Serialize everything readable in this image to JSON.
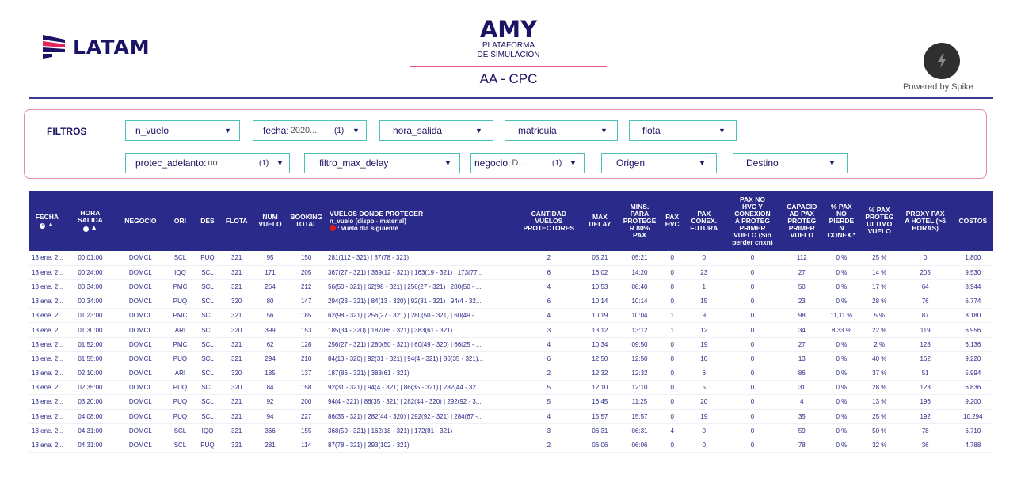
{
  "header": {
    "brand": "LATAM",
    "app_title": "AMY",
    "subtitle_line1": "PLATAFORMA",
    "subtitle_line2": "DE SIMULACIÓN",
    "scenario": "AA - CPC",
    "powered_by": "Powered by Spike"
  },
  "filters": {
    "label": "FILTROS",
    "row1": [
      {
        "name": "n_vuelo",
        "value": "",
        "count": ""
      },
      {
        "name": "fecha:",
        "value": "2020...",
        "count": "(1)"
      },
      {
        "name": "hora_salida",
        "value": "",
        "count": ""
      },
      {
        "name": "matricula",
        "value": "",
        "count": ""
      },
      {
        "name": "flota",
        "value": "",
        "count": ""
      }
    ],
    "row2": [
      {
        "name": "protec_adelanto:",
        "value": "no",
        "count": "(1)"
      },
      {
        "name": "filtro_max_delay",
        "value": "",
        "count": ""
      },
      {
        "name": "negocio:",
        "value": "D...",
        "count": "(1)"
      },
      {
        "name": "Origen",
        "value": "",
        "count": ""
      },
      {
        "name": "Destino",
        "value": "",
        "count": ""
      }
    ]
  },
  "table": {
    "headers": {
      "fecha": "FECHA",
      "hora_salida_1": "HORA",
      "hora_salida_2": "SALIDA",
      "negocio": "NEGOCIO",
      "ori": "ORI",
      "des": "DES",
      "flota": "FLOTA",
      "num_vuelo_1": "NUM",
      "num_vuelo_2": "VUELO",
      "booking_1": "BOOKING",
      "booking_2": "TOTAL",
      "vuelos_1": "VUELOS DONDE PROTEGER",
      "vuelos_2": "n_vuelo (dispo - material)",
      "vuelos_3": ": vuelo día siguiente",
      "cantidad_1": "CANTIDAD",
      "cantidad_2": "VUELOS",
      "cantidad_3": "PROTECTORES",
      "max_delay_1": "MAX",
      "max_delay_2": "DELAY",
      "mins_1": "MINS.",
      "mins_2": "PARA",
      "mins_3": "PROTEGE",
      "mins_4": "R 80%",
      "mins_5": "PAX",
      "pax_hvc_1": "PAX",
      "pax_hvc_2": "HVC",
      "pax_conex_1": "PAX",
      "pax_conex_2": "CONEX.",
      "pax_conex_3": "FUTURA",
      "pax_no_1": "PAX NO",
      "pax_no_2": "HVC Y",
      "pax_no_3": "CONEXION",
      "pax_no_4": "A PROTEG",
      "pax_no_5": "PRIMER",
      "pax_no_6": "VUELO (Sin",
      "pax_no_7": "perder cnxn)",
      "capac_1": "CAPACID",
      "capac_2": "AD PAX",
      "capac_3": "PROTEG",
      "capac_4": "PRIMER",
      "capac_5": "VUELO",
      "pct_no_1": "% PAX",
      "pct_no_2": "NO",
      "pct_no_3": "PIERDE",
      "pct_no_4": "N",
      "pct_no_5": "CONEX.*",
      "pct_ult_1": "% PAX",
      "pct_ult_2": "PROTEG",
      "pct_ult_3": "ULTIMO",
      "pct_ult_4": "VUELO",
      "proxy_1": "PROXY PAX",
      "proxy_2": "A HOTEL (>6",
      "proxy_3": "HORAS)",
      "costos": "COSTOS"
    },
    "rows": [
      [
        "13 ene. 2...",
        "00:01:00",
        "DOMCL",
        "SCL",
        "PUQ",
        "321",
        "95",
        "150",
        "281(112 - 321) | 87(78 - 321)",
        "2",
        "05:21",
        "05:21",
        "0",
        "0",
        "0",
        "112",
        "0 %",
        "25 %",
        "0",
        "1.800"
      ],
      [
        "13 ene. 2...",
        "00:24:00",
        "DOMCL",
        "IQQ",
        "SCL",
        "321",
        "171",
        "205",
        "367(27 - 321) | 369(12 - 321) | 163(19 - 321) | 173(77...",
        "6",
        "16:02",
        "14:20",
        "0",
        "23",
        "0",
        "27",
        "0 %",
        "14 %",
        "205",
        "9.530"
      ],
      [
        "13 ene. 2...",
        "00:34:00",
        "DOMCL",
        "PMC",
        "SCL",
        "321",
        "264",
        "212",
        "56(50 - 321) | 62(98 - 321) | 256(27 - 321) | 280(50 - ...",
        "4",
        "10:53",
        "08:40",
        "0",
        "1",
        "0",
        "50",
        "0 %",
        "17 %",
        "64",
        "8.944"
      ],
      [
        "13 ene. 2...",
        "00:34:00",
        "DOMCL",
        "PUQ",
        "SCL",
        "320",
        "80",
        "147",
        "294(23 - 321) | 84(13 - 320) | 92(31 - 321) | 94(4 - 32...",
        "6",
        "10:14",
        "10:14",
        "0",
        "15",
        "0",
        "23",
        "0 %",
        "28 %",
        "76",
        "6.774"
      ],
      [
        "13 ene. 2...",
        "01:23:00",
        "DOMCL",
        "PMC",
        "SCL",
        "321",
        "56",
        "185",
        "62(98 - 321) | 256(27 - 321) | 280(50 - 321) | 60(49 - ...",
        "4",
        "10:19",
        "10:04",
        "1",
        "9",
        "0",
        "98",
        "11,11 %",
        "5 %",
        "87",
        "8.180"
      ],
      [
        "13 ene. 2...",
        "01:30:00",
        "DOMCL",
        "ARI",
        "SCL",
        "320",
        "399",
        "153",
        "185(34 - 320) | 187(86 - 321) | 383(61 - 321)",
        "3",
        "13:12",
        "13:12",
        "1",
        "12",
        "0",
        "34",
        "8,33 %",
        "22 %",
        "119",
        "6.956"
      ],
      [
        "13 ene. 2...",
        "01:52:00",
        "DOMCL",
        "PMC",
        "SCL",
        "321",
        "62",
        "128",
        "256(27 - 321) | 280(50 - 321) | 60(49 - 320) | 66(25 - ...",
        "4",
        "10:34",
        "09:50",
        "0",
        "19",
        "0",
        "27",
        "0 %",
        "2 %",
        "128",
        "6.136"
      ],
      [
        "13 ene. 2...",
        "01:55:00",
        "DOMCL",
        "PUQ",
        "SCL",
        "321",
        "294",
        "210",
        "84(13 - 320) | 92(31 - 321) | 94(4 - 321) | 86(35 - 321)...",
        "6",
        "12:50",
        "12:50",
        "0",
        "10",
        "0",
        "13",
        "0 %",
        "40 %",
        "162",
        "9.220"
      ],
      [
        "13 ene. 2...",
        "02:10:00",
        "DOMCL",
        "ARI",
        "SCL",
        "320",
        "185",
        "137",
        "187(86 - 321) | 383(61 - 321)",
        "2",
        "12:32",
        "12:32",
        "0",
        "6",
        "0",
        "86",
        "0 %",
        "37 %",
        "51",
        "5.994"
      ],
      [
        "13 ene. 2...",
        "02:35:00",
        "DOMCL",
        "PUQ",
        "SCL",
        "320",
        "84",
        "158",
        "92(31 - 321) | 94(4 - 321) | 86(35 - 321) | 282(44 - 32...",
        "5",
        "12:10",
        "12:10",
        "0",
        "5",
        "0",
        "31",
        "0 %",
        "28 %",
        "123",
        "6.836"
      ],
      [
        "13 ene. 2...",
        "03:20:00",
        "DOMCL",
        "PUQ",
        "SCL",
        "321",
        "92",
        "200",
        "94(4 - 321) | 86(35 - 321) | 282(44 - 320) | 292(92 - 3...",
        "5",
        "16:45",
        "11:25",
        "0",
        "20",
        "0",
        "4",
        "0 %",
        "13 %",
        "196",
        "9.200"
      ],
      [
        "13 ene. 2...",
        "04:08:00",
        "DOMCL",
        "PUQ",
        "SCL",
        "321",
        "94",
        "227",
        "86(35 - 321) | 282(44 - 320) | 292(92 - 321) | 284(67 -...",
        "4",
        "15:57",
        "15:57",
        "0",
        "19",
        "0",
        "35",
        "0 %",
        "25 %",
        "192",
        "10.294"
      ],
      [
        "13 ene. 2...",
        "04:31:00",
        "DOMCL",
        "SCL",
        "IQQ",
        "321",
        "366",
        "155",
        "368(59 - 321) | 162(18 - 321) | 172(81 - 321)",
        "3",
        "06:31",
        "06:31",
        "4",
        "0",
        "0",
        "59",
        "0 %",
        "50 %",
        "78",
        "6.710"
      ],
      [
        "13 ene. 2...",
        "04:31:00",
        "DOMCL",
        "SCL",
        "PUQ",
        "321",
        "281",
        "114",
        "87(78 - 321) | 293(102 - 321)",
        "2",
        "06:06",
        "06:06",
        "0",
        "0",
        "0",
        "78",
        "0 %",
        "32 %",
        "36",
        "4.788"
      ]
    ]
  },
  "colors": {
    "header_bg": "#2a2a8a",
    "accent_pink": "#e0578a",
    "filter_border": "#4cc0b8",
    "brand_navy": "#1b1464"
  }
}
